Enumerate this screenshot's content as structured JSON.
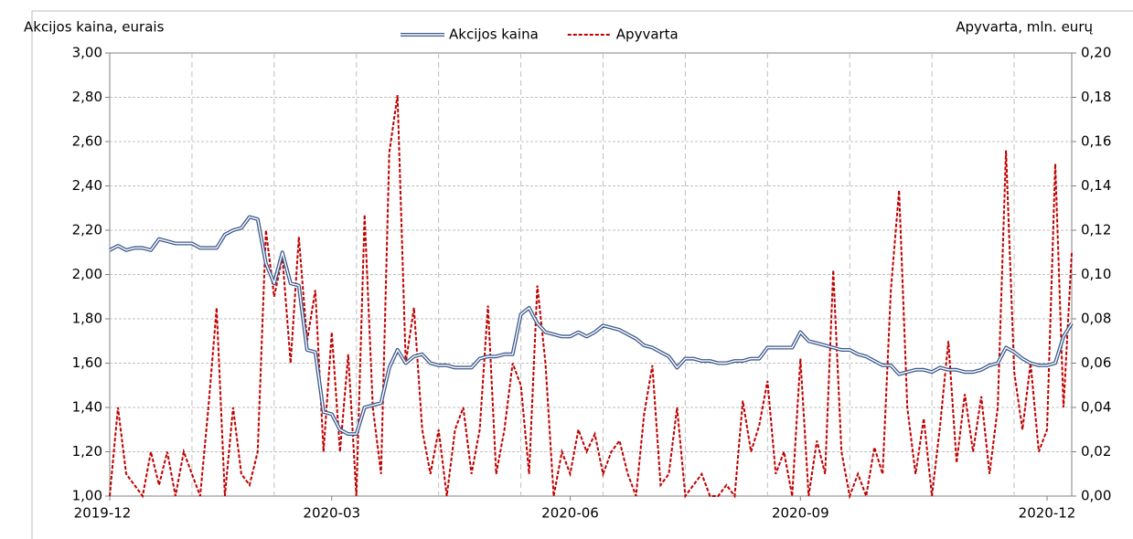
{
  "chart_data": {
    "type": "line",
    "ylabel": "Akcijos kaina, eurais",
    "y2label": "Apyvarta, mln. eurų",
    "categories": [
      "2019-12",
      null,
      null,
      null,
      null,
      null,
      null,
      null,
      null,
      null,
      null,
      null,
      null,
      null,
      null,
      null,
      null,
      null,
      null,
      null,
      null,
      null,
      null,
      null,
      null,
      null,
      null,
      "2020-03",
      null,
      null,
      null,
      null,
      null,
      null,
      null,
      null,
      null,
      null,
      null,
      null,
      null,
      null,
      null,
      null,
      null,
      null,
      null,
      null,
      null,
      null,
      null,
      null,
      null,
      null,
      null,
      null,
      "2020-06",
      null,
      null,
      null,
      null,
      null,
      null,
      null,
      null,
      null,
      null,
      null,
      null,
      null,
      null,
      null,
      null,
      null,
      null,
      null,
      null,
      null,
      null,
      null,
      null,
      null,
      null,
      null,
      "2020-09",
      null,
      null,
      null,
      null,
      null,
      null,
      null,
      null,
      null,
      null,
      null,
      null,
      null,
      null,
      null,
      null,
      null,
      null,
      null,
      null,
      null,
      null,
      null,
      null,
      null,
      null,
      null,
      null,
      null,
      "2020-12",
      null,
      null,
      null
    ],
    "series": [
      {
        "name": "Akcijos kaina",
        "color": "#3d5a8a",
        "values": [
          2.11,
          2.13,
          2.11,
          2.12,
          2.12,
          2.11,
          2.16,
          2.15,
          2.14,
          2.14,
          2.14,
          2.12,
          2.12,
          2.12,
          2.18,
          2.2,
          2.21,
          2.26,
          2.25,
          2.05,
          1.96,
          2.1,
          1.96,
          1.95,
          1.66,
          1.65,
          1.38,
          1.37,
          1.3,
          1.28,
          1.28,
          1.4,
          1.41,
          1.42,
          1.58,
          1.66,
          1.6,
          1.63,
          1.64,
          1.6,
          1.59,
          1.59,
          1.58,
          1.58,
          1.58,
          1.62,
          1.63,
          1.63,
          1.64,
          1.64,
          1.82,
          1.85,
          1.78,
          1.74,
          1.73,
          1.72,
          1.72,
          1.74,
          1.72,
          1.74,
          1.77,
          1.76,
          1.75,
          1.73,
          1.71,
          1.68,
          1.67,
          1.65,
          1.63,
          1.58,
          1.62,
          1.62,
          1.61,
          1.61,
          1.6,
          1.6,
          1.61,
          1.61,
          1.62,
          1.62,
          1.67,
          1.67,
          1.67,
          1.67,
          1.74,
          1.7,
          1.69,
          1.68,
          1.67,
          1.66,
          1.66,
          1.64,
          1.63,
          1.61,
          1.59,
          1.59,
          1.55,
          1.56,
          1.57,
          1.57,
          1.56,
          1.58,
          1.57,
          1.57,
          1.56,
          1.56,
          1.57,
          1.59,
          1.6,
          1.67,
          1.65,
          1.62,
          1.6,
          1.59,
          1.59,
          1.6,
          1.72,
          1.78
        ]
      },
      {
        "name": "Apyvarta",
        "color": "#c00000",
        "axis": "y2",
        "dash": true,
        "values": [
          0.0,
          0.04,
          0.01,
          0.005,
          0.0,
          0.02,
          0.005,
          0.02,
          0.0,
          0.02,
          0.01,
          0.0,
          0.04,
          0.085,
          0.0,
          0.04,
          0.01,
          0.005,
          0.02,
          0.12,
          0.09,
          0.108,
          0.06,
          0.117,
          0.07,
          0.093,
          0.02,
          0.074,
          0.02,
          0.064,
          0.0,
          0.127,
          0.04,
          0.01,
          0.155,
          0.181,
          0.06,
          0.085,
          0.03,
          0.01,
          0.03,
          0.0,
          0.03,
          0.04,
          0.01,
          0.03,
          0.086,
          0.01,
          0.03,
          0.06,
          0.05,
          0.01,
          0.095,
          0.06,
          0.0,
          0.02,
          0.01,
          0.03,
          0.02,
          0.028,
          0.01,
          0.02,
          0.025,
          0.01,
          0.0,
          0.037,
          0.059,
          0.005,
          0.01,
          0.04,
          0.0,
          0.005,
          0.01,
          0.0,
          0.0,
          0.005,
          0.0,
          0.043,
          0.02,
          0.032,
          0.052,
          0.01,
          0.02,
          0.0,
          0.062,
          0.0,
          0.025,
          0.01,
          0.102,
          0.02,
          0.0,
          0.01,
          0.0,
          0.022,
          0.01,
          0.093,
          0.138,
          0.04,
          0.01,
          0.035,
          0.0,
          0.032,
          0.07,
          0.015,
          0.046,
          0.02,
          0.045,
          0.01,
          0.04,
          0.156,
          0.056,
          0.03,
          0.06,
          0.02,
          0.03,
          0.15,
          0.04,
          0.11
        ]
      }
    ],
    "ylim": [
      1,
      3
    ],
    "yticks": [
      {
        "value": 1,
        "label": "1,00"
      },
      {
        "value": 1.2,
        "label": "1,20"
      },
      {
        "value": 1.4,
        "label": "1,40"
      },
      {
        "value": 1.6,
        "label": "1,60"
      },
      {
        "value": 1.8,
        "label": "1,80"
      },
      {
        "value": 2,
        "label": "2,00"
      },
      {
        "value": 2.2,
        "label": "2,20"
      },
      {
        "value": 2.4,
        "label": "2,40"
      },
      {
        "value": 2.6,
        "label": "2,60"
      },
      {
        "value": 2.8,
        "label": "2,80"
      },
      {
        "value": 3,
        "label": "3,00"
      }
    ],
    "y2lim": [
      0,
      0.2
    ],
    "y2ticks": [
      {
        "value": 0,
        "label": "0,00"
      },
      {
        "value": 0.02,
        "label": "0,02"
      },
      {
        "value": 0.04,
        "label": "0,04"
      },
      {
        "value": 0.06,
        "label": "0,06"
      },
      {
        "value": 0.08,
        "label": "0,08"
      },
      {
        "value": 0.1,
        "label": "0,10"
      },
      {
        "value": 0.12,
        "label": "0,12"
      },
      {
        "value": 0.14,
        "label": "0,14"
      },
      {
        "value": 0.16,
        "label": "0,16"
      },
      {
        "value": 0.18,
        "label": "0,18"
      },
      {
        "value": 0.2,
        "label": "0,20"
      }
    ],
    "grid": true,
    "legend": "top"
  }
}
